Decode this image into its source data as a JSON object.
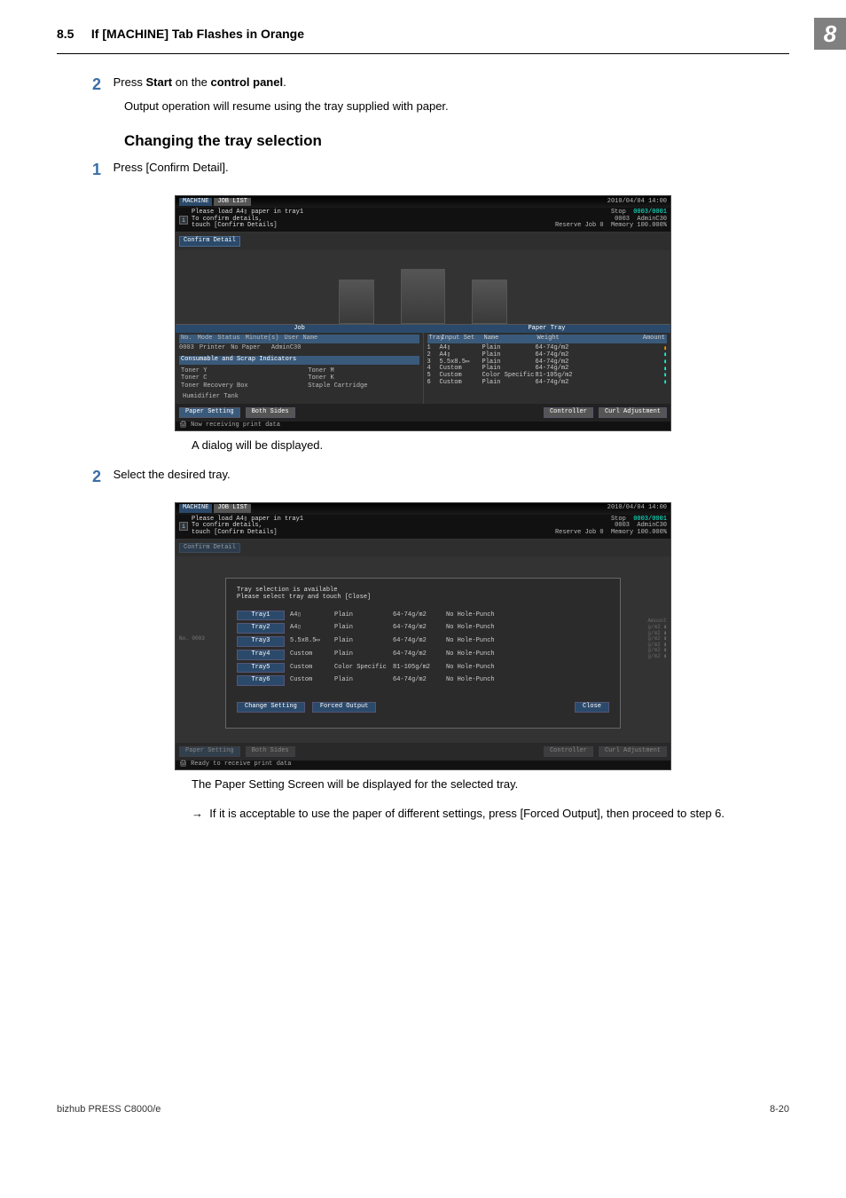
{
  "page": {
    "section_number": "8.5",
    "section_title": "If [MACHINE] Tab Flashes in Orange",
    "chapter_badge": "8",
    "footer_left": "bizhub PRESS C8000/e",
    "footer_right": "8-20"
  },
  "step_a": {
    "num": "2",
    "text_prefix": "Press ",
    "bold1": "Start",
    "mid": " on the ",
    "bold2": "control panel",
    "suffix": ".",
    "sub": "Output operation will resume using the tray supplied with paper."
  },
  "heading2": "Changing the tray selection",
  "step_b": {
    "num": "1",
    "text": "Press [Confirm Detail]."
  },
  "after_shot1": "A dialog will be displayed.",
  "step_c": {
    "num": "2",
    "text": "Select the desired tray."
  },
  "after_shot2_line1": "The Paper Setting Screen will be displayed for the selected tray.",
  "after_shot2_arrow": "→",
  "after_shot2_line2": "If it is acceptable to use the paper of different settings, press [Forced Output], then proceed to step 6.",
  "shot_common": {
    "tab_machine": "MACHINE",
    "tab_joblist": "JOB LIST",
    "datetime": "2010/04/04 14:00",
    "msg_l1": "Please load   A4▯     paper in tray1",
    "msg_l2": "To confirm details,",
    "msg_l3": "touch [Confirm Details]",
    "stat_stop": "Stop",
    "stat_id": "0003",
    "stat_admin": "AdminC30",
    "stat_count": "0003/0001",
    "stat_reserve": "Reserve Job       0",
    "stat_memory": "Memory      100.000%",
    "confirm_btn": "Confirm Detail"
  },
  "shot1": {
    "job_label": "Job",
    "papertray_label": "Paper Tray",
    "job_header": [
      "No.",
      "Mode",
      "Status",
      "Minute(s)",
      "User Name"
    ],
    "job_row": [
      "0003",
      "Printer",
      "No Paper",
      "",
      "AdminC30"
    ],
    "tray_header": [
      "Tray",
      "Input Set",
      "Name",
      "Weight",
      "Amount"
    ],
    "trays": [
      [
        "1",
        "A4▯",
        "Plain",
        "64-74g/m2",
        "o"
      ],
      [
        "2",
        "A4▯",
        "Plain",
        "64-74g/m2",
        ""
      ],
      [
        "3",
        "5.5x8.5▭",
        "Plain",
        "64-74g/m2",
        ""
      ],
      [
        "4",
        "Custom",
        "Plain",
        "64-74g/m2",
        ""
      ],
      [
        "5",
        "Custom",
        "Color Specific",
        "81-105g/m2",
        ""
      ],
      [
        "6",
        "Custom",
        "Plain",
        "64-74g/m2",
        ""
      ]
    ],
    "consum_label": "Consumable and Scrap Indicators",
    "toners": [
      "Toner Y",
      "Toner M",
      "Toner C",
      "Toner K",
      "Toner Recovery Box",
      "Staple Cartridge"
    ],
    "humidifier": "Humidifier Tank",
    "bot": [
      "Paper Setting",
      "Both Sides",
      "Controller",
      "Curl Adjustment"
    ],
    "notice": "Now receiving print data"
  },
  "shot2": {
    "dlg_msg1": "Tray selection is available",
    "dlg_msg2": "Please select tray and touch [Close]",
    "rows": [
      [
        "Tray1",
        "A4▯",
        "Plain",
        "64-74g/m2",
        "No Hole-Punch"
      ],
      [
        "Tray2",
        "A4▯",
        "Plain",
        "64-74g/m2",
        "No Hole-Punch"
      ],
      [
        "Tray3",
        "5.5x8.5▭",
        "Plain",
        "64-74g/m2",
        "No Hole-Punch"
      ],
      [
        "Tray4",
        "Custom",
        "Plain",
        "64-74g/m2",
        "No Hole-Punch"
      ],
      [
        "Tray5",
        "Custom",
        "Color Specific",
        "81-105g/m2",
        "No Hole-Punch"
      ],
      [
        "Tray6",
        "Custom",
        "Plain",
        "64-74g/m2",
        "No Hole-Punch"
      ]
    ],
    "btn_change": "Change Setting",
    "btn_forced": "Forced Output",
    "btn_close": "Close",
    "ghost_left": "No.\n0003",
    "ghost_right": "Amount\ng/m2 ▮\ng/m2 ▮\ng/m2 ▮\ng/m2 ▮\ng/m2 ▮\ng/m2 ▮",
    "notice": "Ready to receive print data"
  }
}
